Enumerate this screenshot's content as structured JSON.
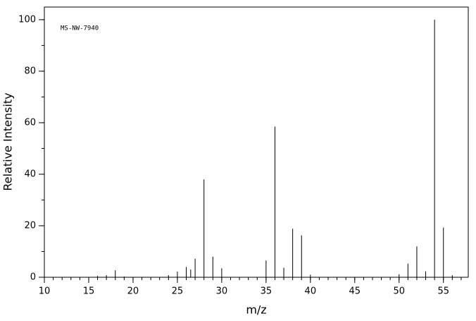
{
  "chart_data": {
    "type": "stick",
    "annotation": "MS-NW-7940",
    "xlabel": "m/z",
    "ylabel": "Relative Intensity",
    "x": [
      16,
      17,
      18,
      19,
      24,
      25,
      26,
      26.5,
      27,
      28,
      29,
      30,
      35,
      36,
      37,
      38,
      39,
      40,
      50,
      51,
      52,
      53,
      54,
      55,
      56
    ],
    "values": [
      0.5,
      0.8,
      2.7,
      0.3,
      0.8,
      2.2,
      4,
      3,
      7.2,
      38,
      8,
      3.5,
      6.5,
      58.5,
      3.7,
      18.8,
      16.3,
      1,
      1.2,
      5.3,
      12,
      2.3,
      100,
      19.3,
      0.8
    ],
    "color": "#000000",
    "xlim": [
      10,
      57.8
    ],
    "ylim": [
      0,
      104.9
    ],
    "xticks": [
      10,
      15,
      20,
      25,
      30,
      35,
      40,
      45,
      50,
      55
    ],
    "x_minor_step": 1,
    "yticks": [
      0,
      20,
      40,
      60,
      80,
      100
    ],
    "y_minor_step": 10
  }
}
